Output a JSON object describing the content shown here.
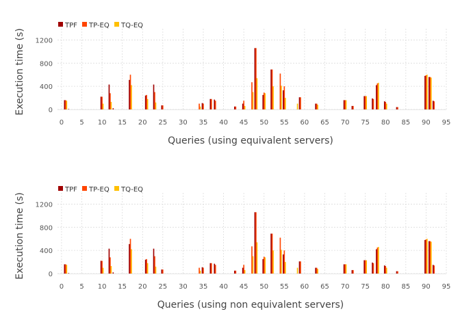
{
  "chart_data": [
    {
      "type": "bar",
      "title": "",
      "xlabel": "Queries (using equivalent servers)",
      "ylabel": "Execution time (s)",
      "xlim": [
        -1,
        95
      ],
      "ylim": [
        0,
        1300
      ],
      "xticks": [
        "0",
        "5",
        "10",
        "15",
        "20",
        "25",
        "30",
        "35",
        "40",
        "45",
        "50",
        "55",
        "60",
        "65",
        "70",
        "75",
        "80",
        "85",
        "90",
        "95"
      ],
      "yticks": [
        "0",
        "400",
        "800",
        "1200"
      ],
      "grid": true,
      "legend": "top-left",
      "colors": {
        "TPF": "#8b0000",
        "TP-EQ": "#ff4500",
        "TQ-EQ": "#ffc000"
      },
      "series": [
        {
          "name": "TPF",
          "color": "#a00000",
          "values": [
            {
              "x": 1,
              "y": 160
            },
            {
              "x": 2,
              "y": 5
            },
            {
              "x": 10,
              "y": 220
            },
            {
              "x": 12,
              "y": 430
            },
            {
              "x": 13,
              "y": 20
            },
            {
              "x": 17,
              "y": 510
            },
            {
              "x": 21,
              "y": 240
            },
            {
              "x": 23,
              "y": 430
            },
            {
              "x": 25,
              "y": 70
            },
            {
              "x": 35,
              "y": 110
            },
            {
              "x": 37,
              "y": 180
            },
            {
              "x": 38,
              "y": 170
            },
            {
              "x": 43,
              "y": 50
            },
            {
              "x": 45,
              "y": 100
            },
            {
              "x": 48,
              "y": 1060
            },
            {
              "x": 50,
              "y": 250
            },
            {
              "x": 52,
              "y": 690
            },
            {
              "x": 55,
              "y": 330
            },
            {
              "x": 59,
              "y": 210
            },
            {
              "x": 63,
              "y": 100
            },
            {
              "x": 70,
              "y": 160
            },
            {
              "x": 72,
              "y": 60
            },
            {
              "x": 75,
              "y": 230
            },
            {
              "x": 77,
              "y": 190
            },
            {
              "x": 78,
              "y": 420
            },
            {
              "x": 80,
              "y": 140
            },
            {
              "x": 83,
              "y": 40
            },
            {
              "x": 90,
              "y": 580
            },
            {
              "x": 91,
              "y": 560
            },
            {
              "x": 92,
              "y": 150
            }
          ]
        },
        {
          "name": "TP-EQ",
          "color": "#ff4500",
          "values": [
            {
              "x": 1,
              "y": 160
            },
            {
              "x": 10,
              "y": 220
            },
            {
              "x": 12,
              "y": 280
            },
            {
              "x": 17,
              "y": 600
            },
            {
              "x": 21,
              "y": 250
            },
            {
              "x": 23,
              "y": 300
            },
            {
              "x": 25,
              "y": 70
            },
            {
              "x": 34,
              "y": 100
            },
            {
              "x": 35,
              "y": 100
            },
            {
              "x": 37,
              "y": 180
            },
            {
              "x": 38,
              "y": 150
            },
            {
              "x": 43,
              "y": 50
            },
            {
              "x": 45,
              "y": 150
            },
            {
              "x": 47,
              "y": 470
            },
            {
              "x": 48,
              "y": 1060
            },
            {
              "x": 50,
              "y": 290
            },
            {
              "x": 52,
              "y": 690
            },
            {
              "x": 54,
              "y": 620
            },
            {
              "x": 55,
              "y": 400
            },
            {
              "x": 59,
              "y": 210
            },
            {
              "x": 63,
              "y": 100
            },
            {
              "x": 70,
              "y": 160
            },
            {
              "x": 72,
              "y": 60
            },
            {
              "x": 75,
              "y": 230
            },
            {
              "x": 77,
              "y": 180
            },
            {
              "x": 78,
              "y": 450
            },
            {
              "x": 80,
              "y": 130
            },
            {
              "x": 83,
              "y": 40
            },
            {
              "x": 90,
              "y": 590
            },
            {
              "x": 91,
              "y": 560
            },
            {
              "x": 92,
              "y": 140
            }
          ]
        },
        {
          "name": "TQ-EQ",
          "color": "#ffc000",
          "values": [
            {
              "x": 1,
              "y": 150
            },
            {
              "x": 10,
              "y": 100
            },
            {
              "x": 12,
              "y": 130
            },
            {
              "x": 17,
              "y": 420
            },
            {
              "x": 21,
              "y": 180
            },
            {
              "x": 23,
              "y": 120
            },
            {
              "x": 34,
              "y": 50
            },
            {
              "x": 45,
              "y": 60
            },
            {
              "x": 47,
              "y": 300
            },
            {
              "x": 48,
              "y": 540
            },
            {
              "x": 50,
              "y": 280
            },
            {
              "x": 52,
              "y": 400
            },
            {
              "x": 54,
              "y": 410
            },
            {
              "x": 55,
              "y": 200
            },
            {
              "x": 58,
              "y": 100
            },
            {
              "x": 63,
              "y": 80
            },
            {
              "x": 70,
              "y": 160
            },
            {
              "x": 75,
              "y": 230
            },
            {
              "x": 78,
              "y": 460
            },
            {
              "x": 80,
              "y": 100
            },
            {
              "x": 90,
              "y": 600
            },
            {
              "x": 91,
              "y": 550
            }
          ]
        }
      ]
    },
    {
      "type": "bar",
      "title": "",
      "xlabel": "Queries (using non equivalent servers)",
      "ylabel": "Execution time (s)",
      "xlim": [
        -1,
        95
      ],
      "ylim": [
        0,
        1300
      ],
      "xticks": [
        "0",
        "5",
        "10",
        "15",
        "20",
        "25",
        "30",
        "35",
        "40",
        "45",
        "50",
        "55",
        "60",
        "65",
        "70",
        "75",
        "80",
        "85",
        "90",
        "95"
      ],
      "yticks": [
        "0",
        "400",
        "800",
        "1200"
      ],
      "grid": true,
      "legend": "top-left",
      "colors": {
        "TPF": "#8b0000",
        "TP-EQ": "#ff4500",
        "TQ-EQ": "#ffc000"
      },
      "series": [
        {
          "name": "TPF",
          "color": "#a00000",
          "values": [
            {
              "x": 1,
              "y": 160
            },
            {
              "x": 2,
              "y": 5
            },
            {
              "x": 10,
              "y": 220
            },
            {
              "x": 12,
              "y": 430
            },
            {
              "x": 13,
              "y": 20
            },
            {
              "x": 17,
              "y": 510
            },
            {
              "x": 21,
              "y": 240
            },
            {
              "x": 23,
              "y": 430
            },
            {
              "x": 25,
              "y": 70
            },
            {
              "x": 35,
              "y": 110
            },
            {
              "x": 37,
              "y": 180
            },
            {
              "x": 38,
              "y": 170
            },
            {
              "x": 43,
              "y": 50
            },
            {
              "x": 45,
              "y": 100
            },
            {
              "x": 48,
              "y": 1060
            },
            {
              "x": 50,
              "y": 250
            },
            {
              "x": 52,
              "y": 690
            },
            {
              "x": 55,
              "y": 330
            },
            {
              "x": 59,
              "y": 210
            },
            {
              "x": 63,
              "y": 100
            },
            {
              "x": 70,
              "y": 160
            },
            {
              "x": 72,
              "y": 60
            },
            {
              "x": 75,
              "y": 230
            },
            {
              "x": 77,
              "y": 190
            },
            {
              "x": 78,
              "y": 420
            },
            {
              "x": 80,
              "y": 140
            },
            {
              "x": 83,
              "y": 40
            },
            {
              "x": 90,
              "y": 580
            },
            {
              "x": 91,
              "y": 560
            },
            {
              "x": 92,
              "y": 150
            }
          ]
        },
        {
          "name": "TP-EQ",
          "color": "#ff4500",
          "values": [
            {
              "x": 1,
              "y": 160
            },
            {
              "x": 10,
              "y": 220
            },
            {
              "x": 12,
              "y": 280
            },
            {
              "x": 17,
              "y": 600
            },
            {
              "x": 21,
              "y": 250
            },
            {
              "x": 23,
              "y": 300
            },
            {
              "x": 25,
              "y": 70
            },
            {
              "x": 34,
              "y": 100
            },
            {
              "x": 35,
              "y": 100
            },
            {
              "x": 37,
              "y": 180
            },
            {
              "x": 38,
              "y": 150
            },
            {
              "x": 43,
              "y": 50
            },
            {
              "x": 45,
              "y": 150
            },
            {
              "x": 47,
              "y": 470
            },
            {
              "x": 48,
              "y": 1060
            },
            {
              "x": 50,
              "y": 290
            },
            {
              "x": 52,
              "y": 690
            },
            {
              "x": 54,
              "y": 620
            },
            {
              "x": 55,
              "y": 400
            },
            {
              "x": 59,
              "y": 210
            },
            {
              "x": 63,
              "y": 100
            },
            {
              "x": 70,
              "y": 160
            },
            {
              "x": 72,
              "y": 60
            },
            {
              "x": 75,
              "y": 230
            },
            {
              "x": 77,
              "y": 180
            },
            {
              "x": 78,
              "y": 450
            },
            {
              "x": 80,
              "y": 130
            },
            {
              "x": 83,
              "y": 40
            },
            {
              "x": 90,
              "y": 590
            },
            {
              "x": 91,
              "y": 560
            },
            {
              "x": 92,
              "y": 140
            }
          ]
        },
        {
          "name": "TQ-EQ",
          "color": "#ffc000",
          "values": [
            {
              "x": 1,
              "y": 150
            },
            {
              "x": 10,
              "y": 100
            },
            {
              "x": 12,
              "y": 130
            },
            {
              "x": 17,
              "y": 420
            },
            {
              "x": 21,
              "y": 180
            },
            {
              "x": 23,
              "y": 120
            },
            {
              "x": 34,
              "y": 50
            },
            {
              "x": 45,
              "y": 60
            },
            {
              "x": 47,
              "y": 300
            },
            {
              "x": 48,
              "y": 540
            },
            {
              "x": 50,
              "y": 280
            },
            {
              "x": 52,
              "y": 400
            },
            {
              "x": 54,
              "y": 410
            },
            {
              "x": 55,
              "y": 200
            },
            {
              "x": 58,
              "y": 100
            },
            {
              "x": 63,
              "y": 80
            },
            {
              "x": 70,
              "y": 160
            },
            {
              "x": 75,
              "y": 230
            },
            {
              "x": 78,
              "y": 460
            },
            {
              "x": 80,
              "y": 100
            },
            {
              "x": 90,
              "y": 600
            },
            {
              "x": 91,
              "y": 550
            }
          ]
        }
      ]
    }
  ]
}
